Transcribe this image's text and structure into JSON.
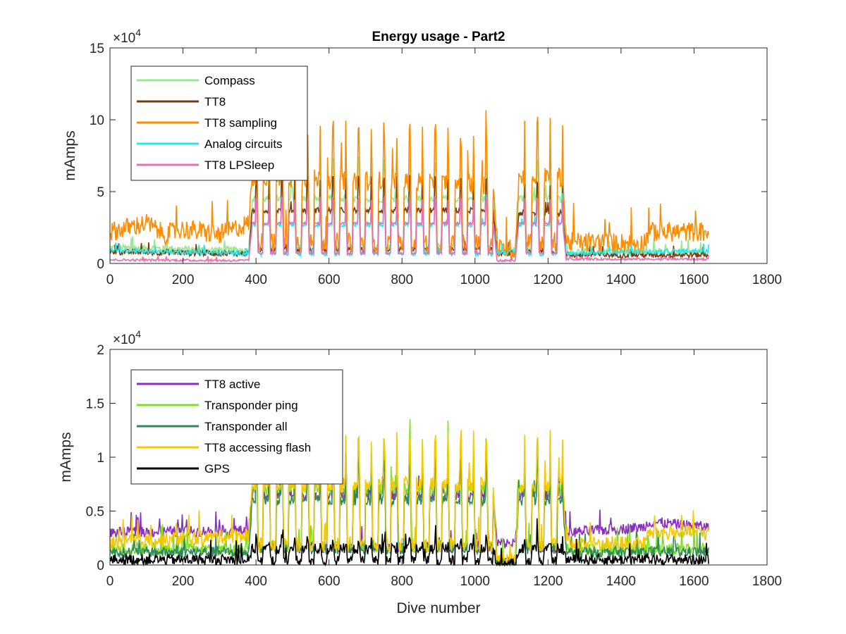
{
  "chart_data": [
    {
      "type": "line",
      "title": "Energy usage - Part2",
      "xlabel": "",
      "ylabel": "mAmps",
      "xlim": [
        0,
        1800
      ],
      "ylim": [
        0,
        150000
      ],
      "xticks": [
        "0",
        "200",
        "400",
        "600",
        "800",
        "1000",
        "1200",
        "1400",
        "1600",
        "1800"
      ],
      "yticks": [
        "0",
        "5",
        "10",
        "15"
      ],
      "y_exponent": "×10",
      "y_exponent_power": "4",
      "legend_position": "top-left",
      "grid": false,
      "series": [
        {
          "name": "Compass",
          "color": "#98e890",
          "base": [
            [
              0,
              11000
            ],
            [
              380,
              9000
            ],
            [
              390,
              45000
            ],
            [
              1050,
              45000
            ],
            [
              1060,
              9000
            ],
            [
              1110,
              9000
            ],
            [
              1120,
              45000
            ],
            [
              1240,
              45000
            ],
            [
              1250,
              8000
            ],
            [
              1640,
              8000
            ]
          ],
          "noise": 2500
        },
        {
          "name": "TT8",
          "color": "#7b3a10",
          "base": [
            [
              0,
              8000
            ],
            [
              380,
              7000
            ],
            [
              390,
              37000
            ],
            [
              1050,
              37000
            ],
            [
              1060,
              7000
            ],
            [
              1110,
              7000
            ],
            [
              1120,
              35000
            ],
            [
              1240,
              35000
            ],
            [
              1250,
              6000
            ],
            [
              1640,
              6000
            ]
          ],
          "noise": 2000
        },
        {
          "name": "TT8 sampling",
          "color": "#ff8c00",
          "base": [
            [
              0,
              22000
            ],
            [
              100,
              28000
            ],
            [
              150,
              20000
            ],
            [
              200,
              24000
            ],
            [
              300,
              20000
            ],
            [
              380,
              28000
            ],
            [
              390,
              60000
            ],
            [
              1050,
              55000
            ],
            [
              1060,
              10000
            ],
            [
              1110,
              10000
            ],
            [
              1120,
              60000
            ],
            [
              1240,
              60000
            ],
            [
              1250,
              15000
            ],
            [
              1460,
              14000
            ],
            [
              1480,
              22000
            ],
            [
              1640,
              22000
            ]
          ],
          "noise": 7000
        },
        {
          "name": "Analog circuits",
          "color": "#22e8e8",
          "base": [
            [
              0,
              9000
            ],
            [
              380,
              7000
            ],
            [
              390,
              27000
            ],
            [
              1050,
              27000
            ],
            [
              1060,
              8000
            ],
            [
              1110,
              8000
            ],
            [
              1120,
              27000
            ],
            [
              1240,
              27000
            ],
            [
              1250,
              7000
            ],
            [
              1640,
              9000
            ]
          ],
          "noise": 1500
        },
        {
          "name": "TT8 LPSleep",
          "color": "#e870b0",
          "base": [
            [
              0,
              2500
            ],
            [
              380,
              2000
            ],
            [
              390,
              28000
            ],
            [
              1050,
              28000
            ],
            [
              1060,
              2000
            ],
            [
              1110,
              2000
            ],
            [
              1120,
              28000
            ],
            [
              1240,
              28000
            ],
            [
              1250,
              3000
            ],
            [
              1640,
              3000
            ]
          ],
          "noise": 800
        }
      ]
    },
    {
      "type": "line",
      "title": "",
      "xlabel": "Dive number",
      "ylabel": "mAmps",
      "xlim": [
        0,
        1800
      ],
      "ylim": [
        0,
        20000
      ],
      "xticks": [
        "0",
        "200",
        "400",
        "600",
        "800",
        "1000",
        "1200",
        "1400",
        "1600",
        "1800"
      ],
      "yticks": [
        "0",
        "0.5",
        "1",
        "1.5",
        "2"
      ],
      "y_exponent": "×10",
      "y_exponent_power": "4",
      "legend_position": "top-left",
      "grid": false,
      "series": [
        {
          "name": "TT8 active",
          "color": "#8a2fc0",
          "base": [
            [
              0,
              3000
            ],
            [
              380,
              3200
            ],
            [
              390,
              6500
            ],
            [
              1050,
              6500
            ],
            [
              1060,
              2000
            ],
            [
              1110,
              2000
            ],
            [
              1120,
              6500
            ],
            [
              1240,
              6500
            ],
            [
              1250,
              3000
            ],
            [
              1460,
              3500
            ],
            [
              1480,
              4000
            ],
            [
              1640,
              3500
            ]
          ],
          "noise": 500
        },
        {
          "name": "Transponder ping",
          "color": "#7ce020",
          "base": [
            [
              0,
              1500
            ],
            [
              380,
              1500
            ],
            [
              390,
              7000
            ],
            [
              1050,
              7000
            ],
            [
              1060,
              200
            ],
            [
              1110,
              200
            ],
            [
              1120,
              7000
            ],
            [
              1240,
              7000
            ],
            [
              1250,
              1500
            ],
            [
              1640,
              1500
            ]
          ],
          "noise": 600
        },
        {
          "name": "Transponder all",
          "color": "#2e8b57",
          "base": [
            [
              0,
              1200
            ],
            [
              380,
              1200
            ],
            [
              390,
              6000
            ],
            [
              1050,
              6000
            ],
            [
              1060,
              200
            ],
            [
              1110,
              200
            ],
            [
              1120,
              6000
            ],
            [
              1240,
              6000
            ],
            [
              1250,
              1200
            ],
            [
              1640,
              1200
            ]
          ],
          "noise": 500
        },
        {
          "name": "TT8 accessing flash",
          "color": "#f5c800",
          "base": [
            [
              0,
              2000
            ],
            [
              380,
              2800
            ],
            [
              390,
              7500
            ],
            [
              1050,
              7500
            ],
            [
              1060,
              500
            ],
            [
              1110,
              500
            ],
            [
              1120,
              7500
            ],
            [
              1240,
              7500
            ],
            [
              1250,
              2000
            ],
            [
              1460,
              2000
            ],
            [
              1480,
              3000
            ],
            [
              1640,
              3000
            ]
          ],
          "noise": 700
        },
        {
          "name": "GPS",
          "color": "#000000",
          "base": [
            [
              0,
              500
            ],
            [
              380,
              500
            ],
            [
              390,
              1500
            ],
            [
              1050,
              1500
            ],
            [
              1060,
              100
            ],
            [
              1110,
              100
            ],
            [
              1120,
              1500
            ],
            [
              1240,
              1500
            ],
            [
              1250,
              500
            ],
            [
              1640,
              500
            ]
          ],
          "noise": 500
        }
      ]
    }
  ]
}
